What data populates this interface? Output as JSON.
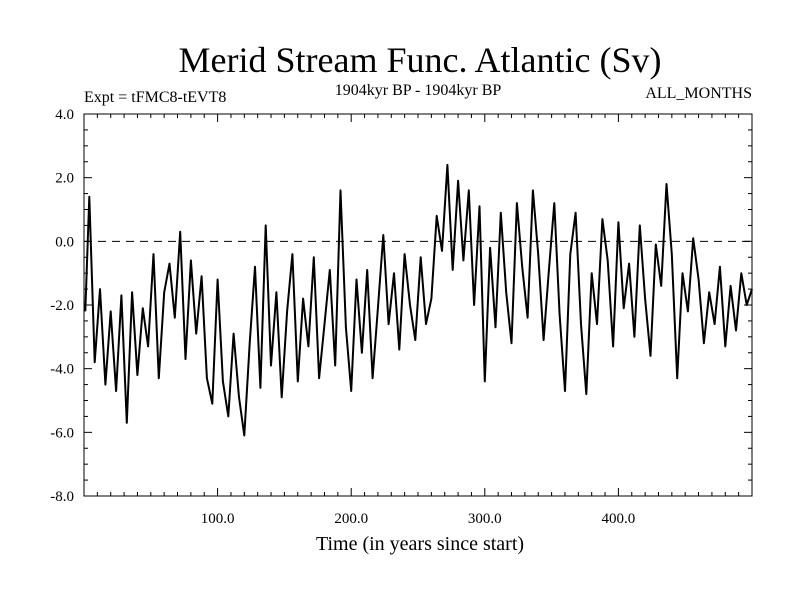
{
  "chart_data": {
    "type": "line",
    "title": "Merid Stream Func. Atlantic (Sv)",
    "subtitle_left": "Expt = tFMC8-tEVT8",
    "subtitle_center": "1904kyr BP - 1904kyr BP",
    "subtitle_right": "ALL_MONTHS",
    "xlabel": "Time (in years since start)",
    "ylabel": "",
    "xlim": [
      0,
      500
    ],
    "ylim": [
      -8,
      4
    ],
    "x_ticks": [
      100,
      200,
      300,
      400
    ],
    "x_tick_labels": [
      "100.0",
      "200.0",
      "300.0",
      "400.0"
    ],
    "y_ticks": [
      -8,
      -6,
      -4,
      -2,
      0,
      2,
      4
    ],
    "y_tick_labels": [
      "-8.0",
      "-6.0",
      "-4.0",
      "-2.0",
      "0.0",
      "2.0",
      "4.0"
    ],
    "reference_line": 0,
    "series": [
      {
        "name": "Merid Stream Func. Atlantic",
        "x": [
          1,
          4,
          8,
          12,
          16,
          20,
          24,
          28,
          32,
          36,
          40,
          44,
          48,
          52,
          56,
          60,
          64,
          68,
          72,
          76,
          80,
          84,
          88,
          92,
          96,
          100,
          104,
          108,
          112,
          116,
          120,
          124,
          128,
          132,
          136,
          140,
          144,
          148,
          152,
          156,
          160,
          164,
          168,
          172,
          176,
          180,
          184,
          188,
          192,
          196,
          200,
          204,
          208,
          212,
          216,
          220,
          224,
          228,
          232,
          236,
          240,
          244,
          248,
          252,
          256,
          260,
          264,
          268,
          272,
          276,
          280,
          284,
          288,
          292,
          296,
          300,
          304,
          308,
          312,
          316,
          320,
          324,
          328,
          332,
          336,
          340,
          344,
          348,
          352,
          356,
          360,
          364,
          368,
          372,
          376,
          380,
          384,
          388,
          392,
          396,
          400,
          404,
          408,
          412,
          416,
          420,
          424,
          428,
          432,
          436,
          440,
          444,
          448,
          452,
          456,
          460,
          464,
          468,
          472,
          476,
          480,
          484,
          488,
          492,
          496,
          500
        ],
        "values": [
          -2.2,
          1.4,
          -3.8,
          -1.5,
          -4.5,
          -2.2,
          -4.7,
          -1.7,
          -5.7,
          -1.6,
          -4.2,
          -2.1,
          -3.3,
          -0.4,
          -4.3,
          -1.6,
          -0.7,
          -2.4,
          0.3,
          -3.7,
          -0.6,
          -2.9,
          -1.1,
          -4.3,
          -5.1,
          -1.2,
          -4.4,
          -5.5,
          -2.9,
          -4.9,
          -6.1,
          -3.2,
          -0.8,
          -4.6,
          0.5,
          -3.9,
          -1.6,
          -4.9,
          -2.2,
          -0.4,
          -4.4,
          -1.8,
          -3.3,
          -0.5,
          -4.3,
          -2.6,
          -0.9,
          -3.9,
          1.6,
          -2.7,
          -4.7,
          -1.2,
          -3.5,
          -0.9,
          -4.3,
          -2.1,
          0.2,
          -2.6,
          -1.0,
          -3.4,
          -0.4,
          -2.0,
          -3.1,
          -0.5,
          -2.6,
          -1.8,
          0.8,
          -0.3,
          2.4,
          -0.9,
          1.9,
          -0.6,
          1.6,
          -2.0,
          1.1,
          -4.4,
          -0.2,
          -2.7,
          0.9,
          -1.6,
          -3.2,
          1.2,
          -0.8,
          -2.4,
          1.6,
          -0.4,
          -3.1,
          -0.9,
          1.2,
          -2.3,
          -4.7,
          -0.4,
          0.9,
          -2.6,
          -4.8,
          -1.0,
          -2.6,
          0.7,
          -0.6,
          -3.3,
          0.6,
          -2.1,
          -0.7,
          -3.0,
          0.5,
          -1.8,
          -3.6,
          -0.1,
          -1.4,
          1.8,
          -0.4,
          -4.3,
          -1.0,
          -2.2,
          0.1,
          -1.2,
          -3.2,
          -1.6,
          -2.6,
          -0.8,
          -3.3,
          -1.4,
          -2.8,
          -1.0,
          -2.0,
          -1.5
        ]
      }
    ]
  }
}
